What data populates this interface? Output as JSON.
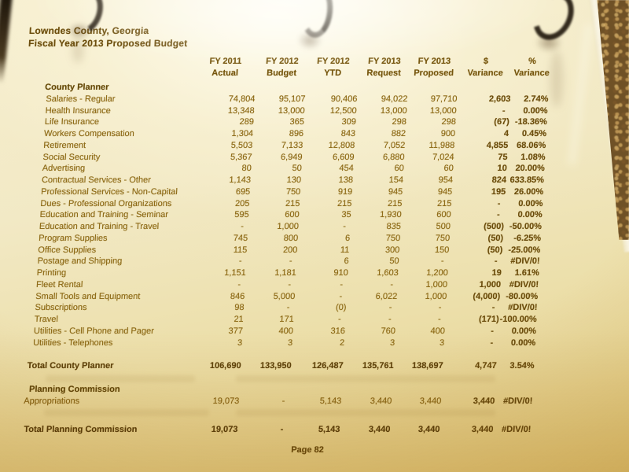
{
  "document": {
    "title_line1": "Lowndes County, Georgia",
    "title_line2": "Fiscal Year 2013 Proposed Budget",
    "footer": "Page 82"
  },
  "table": {
    "column_headers": [
      {
        "line1": "FY 2011",
        "line2": "Actual"
      },
      {
        "line1": "FY 2012",
        "line2": "Budget"
      },
      {
        "line1": "FY 2012",
        "line2": "YTD"
      },
      {
        "line1": "FY 2013",
        "line2": "Request"
      },
      {
        "line1": "FY 2013",
        "line2": "Proposed"
      },
      {
        "line1": "$",
        "line2": "Variance"
      },
      {
        "line1": "%",
        "line2": "Variance"
      }
    ],
    "rows": [
      {
        "label": "County Planner",
        "style": "section",
        "values": []
      },
      {
        "label": "Salaries - Regular",
        "style": "detail",
        "values": [
          "74,804",
          "95,107",
          "90,406",
          "94,022",
          "97,710",
          "2,603",
          "2.74%"
        ]
      },
      {
        "label": "Health Insurance",
        "style": "detail",
        "values": [
          "13,348",
          "13,000",
          "12,500",
          "13,000",
          "13,000",
          "-",
          "0.00%"
        ]
      },
      {
        "label": "Life Insurance",
        "style": "detail",
        "values": [
          "289",
          "365",
          "309",
          "298",
          "298",
          "(67)",
          "-18.36%"
        ]
      },
      {
        "label": "Workers Compensation",
        "style": "detail",
        "values": [
          "1,304",
          "896",
          "843",
          "882",
          "900",
          "4",
          "0.45%"
        ]
      },
      {
        "label": "Retirement",
        "style": "detail",
        "values": [
          "5,503",
          "7,133",
          "12,808",
          "7,052",
          "11,988",
          "4,855",
          "68.06%"
        ]
      },
      {
        "label": "Social Security",
        "style": "detail",
        "values": [
          "5,367",
          "6,949",
          "6,609",
          "6,880",
          "7,024",
          "75",
          "1.08%"
        ]
      },
      {
        "label": "Advertising",
        "style": "detail",
        "values": [
          "80",
          "50",
          "454",
          "60",
          "60",
          "10",
          "20.00%"
        ]
      },
      {
        "label": "Contractual Services - Other",
        "style": "detail",
        "values": [
          "1,143",
          "130",
          "138",
          "154",
          "954",
          "824",
          "633.85%"
        ]
      },
      {
        "label": "Professional Services - Non-Capital",
        "style": "detail",
        "values": [
          "695",
          "750",
          "919",
          "945",
          "945",
          "195",
          "26.00%"
        ]
      },
      {
        "label": "Dues - Professional Organizations",
        "style": "detail",
        "values": [
          "205",
          "215",
          "215",
          "215",
          "215",
          "-",
          "0.00%"
        ]
      },
      {
        "label": "Education and Training - Seminar",
        "style": "detail",
        "values": [
          "595",
          "600",
          "35",
          "1,930",
          "600",
          "-",
          "0.00%"
        ]
      },
      {
        "label": "Education and Training - Travel",
        "style": "detail",
        "values": [
          "-",
          "1,000",
          "-",
          "835",
          "500",
          "(500)",
          "-50.00%"
        ]
      },
      {
        "label": "Program Supplies",
        "style": "detail",
        "values": [
          "745",
          "800",
          "6",
          "750",
          "750",
          "(50)",
          "-6.25%"
        ]
      },
      {
        "label": "Office Supplies",
        "style": "detail",
        "values": [
          "115",
          "200",
          "11",
          "300",
          "150",
          "(50)",
          "-25.00%"
        ]
      },
      {
        "label": "Postage and Shipping",
        "style": "detail",
        "values": [
          "-",
          "-",
          "6",
          "50",
          "-",
          "-",
          "#DIV/0!"
        ]
      },
      {
        "label": "Printing",
        "style": "detail",
        "values": [
          "1,151",
          "1,181",
          "910",
          "1,603",
          "1,200",
          "19",
          "1.61%"
        ]
      },
      {
        "label": "Fleet Rental",
        "style": "detail",
        "values": [
          "-",
          "-",
          "-",
          "-",
          "1,000",
          "1,000",
          "#DIV/0!"
        ]
      },
      {
        "label": "Small Tools and Equipment",
        "style": "detail",
        "values": [
          "846",
          "5,000",
          "-",
          "6,022",
          "1,000",
          "(4,000)",
          "-80.00%"
        ]
      },
      {
        "label": "Subscriptions",
        "style": "detail",
        "values": [
          "98",
          "-",
          "(0)",
          "-",
          "-",
          "-",
          "#DIV/0!"
        ]
      },
      {
        "label": "Travel",
        "style": "detail",
        "values": [
          "21",
          "171",
          "-",
          "-",
          "-",
          "(171)",
          "-100.00%"
        ]
      },
      {
        "label": "Utilities - Cell Phone and Pager",
        "style": "detail",
        "values": [
          "377",
          "400",
          "316",
          "760",
          "400",
          "-",
          "0.00%"
        ]
      },
      {
        "label": "Utilities - Telephones",
        "style": "detail",
        "values": [
          "3",
          "3",
          "2",
          "3",
          "3",
          "-",
          "0.00%"
        ]
      },
      {
        "label": "Total County Planner",
        "style": "total",
        "space_before": 15,
        "values": [
          "106,690",
          "133,950",
          "126,487",
          "135,761",
          "138,697",
          "4,747",
          "3.54%"
        ]
      },
      {
        "label": "Planning Commission",
        "style": "section",
        "space_before": 15,
        "values": []
      },
      {
        "label": "Appropriations",
        "style": "detail2",
        "values": [
          "19,073",
          "-",
          "5,143",
          "3,440",
          "3,440",
          "3,440",
          "#DIV/0!"
        ]
      },
      {
        "label": "Total Planning Commission",
        "style": "total",
        "space_before": 21,
        "values": [
          "19,073",
          "-",
          "5,143",
          "3,440",
          "3,440",
          "3,440",
          "#DIV/0!"
        ]
      }
    ]
  },
  "colors": {
    "paper": "#f1e8c2",
    "ink": "#8d6a16",
    "ink_bold": "#5f430c",
    "binder_ring": "#231a0d",
    "background_texture": "#6f5126"
  }
}
